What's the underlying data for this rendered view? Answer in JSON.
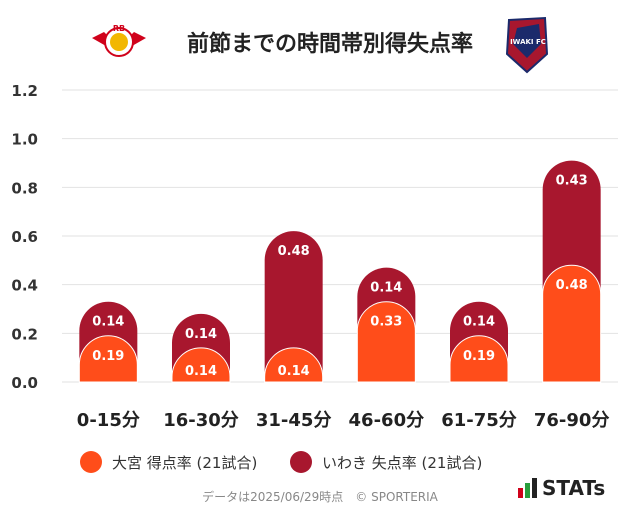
{
  "header": {
    "title": "前節までの時間帯別得失点率"
  },
  "chart_data": {
    "type": "bar",
    "categories": [
      "0-15分",
      "16-30分",
      "31-45分",
      "46-60分",
      "61-75分",
      "76-90分"
    ],
    "series": [
      {
        "name": "大宮 得点率 (21試合)",
        "values": [
          0.19,
          0.14,
          0.14,
          0.33,
          0.19,
          0.48
        ],
        "color": "#ff4d1a"
      },
      {
        "name": "いわき 失点率 (21試合)",
        "values": [
          0.14,
          0.14,
          0.48,
          0.14,
          0.14,
          0.43
        ],
        "color": "#a8172e"
      }
    ],
    "stacked": true,
    "y_ticks": [
      "0.0",
      "0.2",
      "0.4",
      "0.6",
      "0.8",
      "1.0",
      "1.2"
    ],
    "ylim": [
      0,
      1.2
    ],
    "grid": true,
    "legend_position": "bottom"
  },
  "footer": {
    "source": "データは2025/06/29時点　© SPORTERIA",
    "brand": "STATs"
  },
  "logos": {
    "left": "RB",
    "right": "IWAKI FC"
  }
}
